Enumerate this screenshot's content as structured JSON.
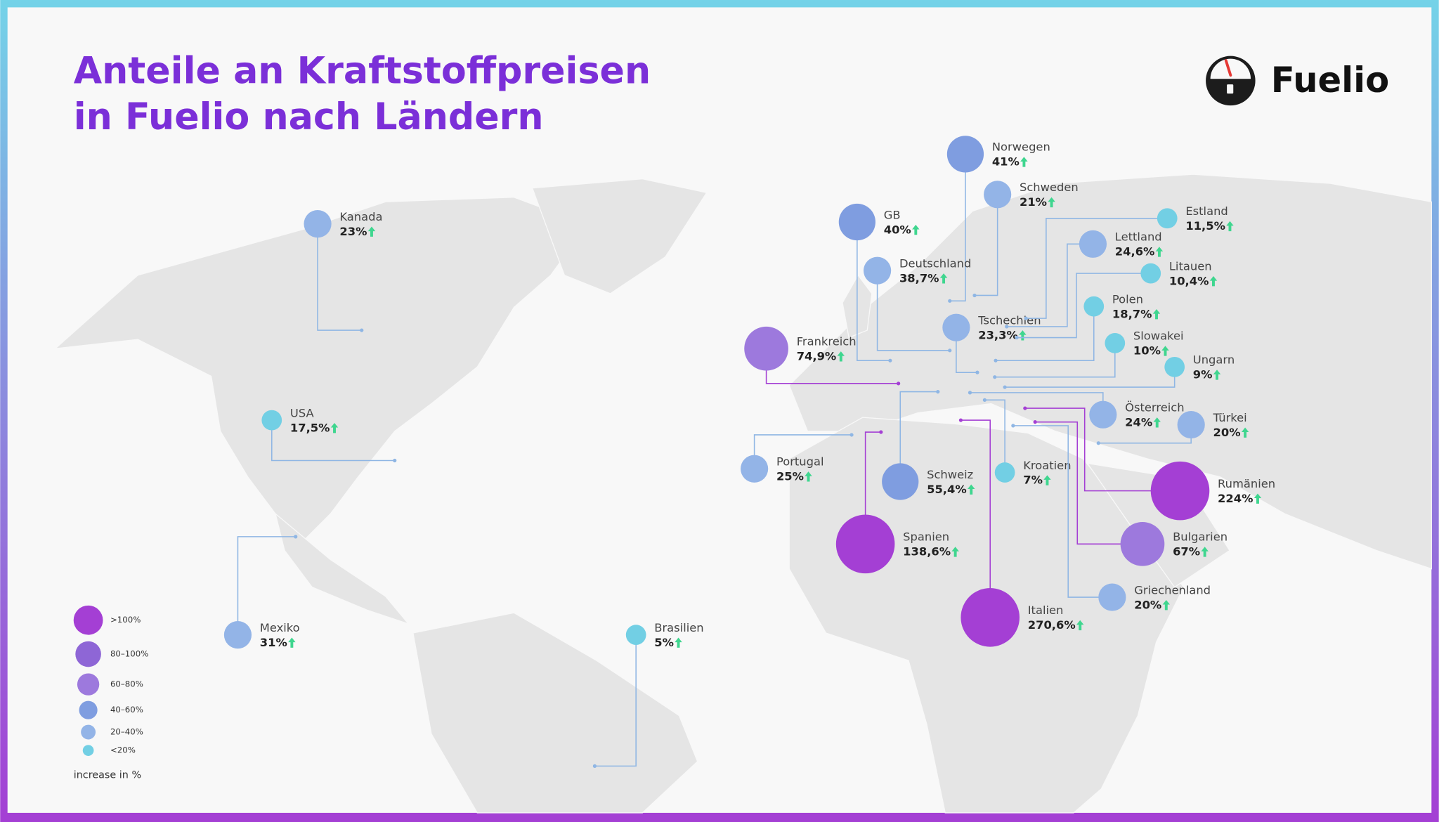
{
  "header": {
    "title_lines": [
      "Anteile an Kraftstoffpreisen",
      "in Fuelio nach Ländern"
    ]
  },
  "logo": {
    "text": "Fuelio"
  },
  "legend": {
    "items": [
      {
        "label": ">100%",
        "from": 100,
        "color": "#a43fd4"
      },
      {
        "label": "80–100%",
        "from": 80,
        "color": "#8e66d6"
      },
      {
        "label": "60–80%",
        "from": 60,
        "color": "#9d79dd"
      },
      {
        "label": "40–60%",
        "from": 40,
        "color": "#7f9de0"
      },
      {
        "label": "20–40%",
        "from": 20,
        "color": "#93b4e7"
      },
      {
        "label": "<20%",
        "color": "#72cfe4"
      }
    ],
    "note": "increase in %"
  },
  "countries": [
    {
      "name": "Kanada",
      "value": 23,
      "value_label": "23%"
    },
    {
      "name": "USA",
      "value": 17.5,
      "value_label": "17,5%"
    },
    {
      "name": "Mexiko",
      "value": 31,
      "value_label": "31%"
    },
    {
      "name": "Brasilien",
      "value": 5,
      "value_label": "5%"
    },
    {
      "name": "Norwegen",
      "value": 41,
      "value_label": "41%"
    },
    {
      "name": "Schweden",
      "value": 21,
      "value_label": "21%"
    },
    {
      "name": "GB",
      "value": 40,
      "value_label": "40%"
    },
    {
      "name": "Deutschland",
      "value": 38.7,
      "value_label": "38,7%"
    },
    {
      "name": "Frankreich",
      "value": 74.9,
      "value_label": "74,9%"
    },
    {
      "name": "Portugal",
      "value": 25,
      "value_label": "25%"
    },
    {
      "name": "Schweiz",
      "value": 55.4,
      "value_label": "55,4%"
    },
    {
      "name": "Spanien",
      "value": 138.6,
      "value_label": "138,6%"
    },
    {
      "name": "Italien",
      "value": 270.6,
      "value_label": "270,6%"
    },
    {
      "name": "Kroatien",
      "value": 7,
      "value_label": "7%"
    },
    {
      "name": "Tschechien",
      "value": 23.3,
      "value_label": "23,3%"
    },
    {
      "name": "Estland",
      "value": 11.5,
      "value_label": "11,5%"
    },
    {
      "name": "Lettland",
      "value": 24.6,
      "value_label": "24,6%"
    },
    {
      "name": "Litauen",
      "value": 10.4,
      "value_label": "10,4%"
    },
    {
      "name": "Polen",
      "value": 18.7,
      "value_label": "18,7%"
    },
    {
      "name": "Slowakei",
      "value": 10,
      "value_label": "10%"
    },
    {
      "name": "Ungarn",
      "value": 9,
      "value_label": "9%"
    },
    {
      "name": "Österreich",
      "value": 24,
      "value_label": "24%"
    },
    {
      "name": "Türkei",
      "value": 20,
      "value_label": "20%"
    },
    {
      "name": "Rumänien",
      "value": 224,
      "value_label": "224%"
    },
    {
      "name": "Bulgarien",
      "value": 67,
      "value_label": "67%"
    },
    {
      "name": "Griechenland",
      "value": 20,
      "value_label": "20%"
    }
  ]
}
